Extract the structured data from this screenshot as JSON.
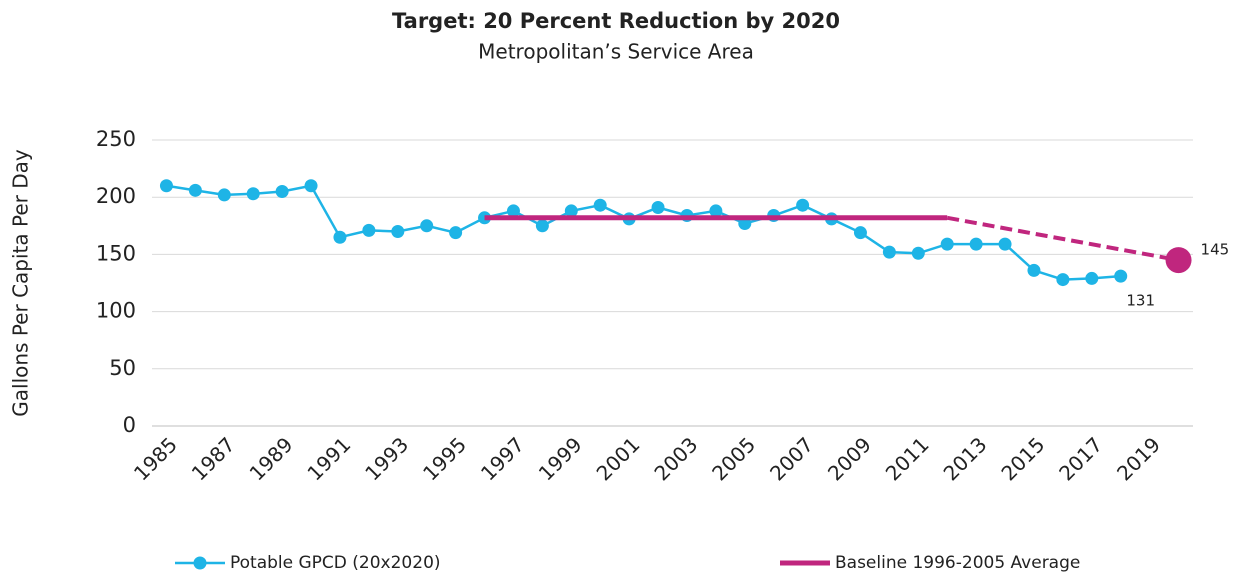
{
  "chart_data": {
    "type": "line",
    "title": "Target: 20 Percent Reduction by 2020",
    "subtitle": "Metropolitan’s Service Area",
    "y_label": "Gallons Per Capita Per Day",
    "xlim": [
      1984.5,
      2020.5
    ],
    "xticks": [
      1985,
      1987,
      1989,
      1991,
      1993,
      1995,
      1997,
      1999,
      2001,
      2003,
      2005,
      2007,
      2009,
      2011,
      2013,
      2015,
      2017,
      2019
    ],
    "ylim": [
      0,
      250
    ],
    "yticks": [
      0,
      50,
      100,
      150,
      200,
      250
    ],
    "grid": true,
    "legend": "bottom",
    "series": [
      {
        "name": "Potable GPCD (20x2020)",
        "color": "#1eb4e6",
        "markers": true,
        "label_last": true,
        "x": [
          1985,
          1986,
          1987,
          1988,
          1989,
          1990,
          1991,
          1992,
          1993,
          1994,
          1995,
          1996,
          1997,
          1998,
          1999,
          2000,
          2001,
          2002,
          2003,
          2004,
          2005,
          2006,
          2007,
          2008,
          2009,
          2010,
          2011,
          2012,
          2013,
          2014,
          2015,
          2016,
          2017,
          2018
        ],
        "values": [
          210,
          206,
          202,
          203,
          205,
          210,
          165,
          171,
          170,
          175,
          169,
          182,
          188,
          175,
          188,
          193,
          181,
          191,
          184,
          188,
          177,
          184,
          193,
          181,
          169,
          152,
          151,
          159,
          159,
          159,
          136,
          128,
          129,
          131
        ]
      },
      {
        "name": "Baseline 1996-2005 Average",
        "color": "#c0267e",
        "width": 5,
        "x": [
          1996,
          2012
        ],
        "values": [
          182,
          182
        ]
      },
      {
        "color": "#c0267e",
        "dashed": true,
        "width": 4,
        "end_marker": true,
        "label_last": true,
        "x": [
          2012,
          2020
        ],
        "values": [
          182,
          145
        ]
      }
    ]
  }
}
